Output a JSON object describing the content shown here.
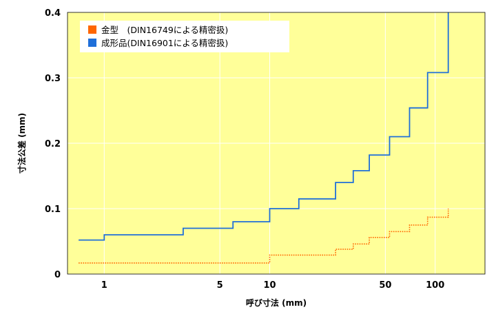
{
  "chart_data": {
    "type": "line",
    "xlabel": "呼び寸法 (mm)",
    "ylabel": "寸法公差 (mm)",
    "xscale": "log",
    "xlim": [
      0.6,
      200
    ],
    "ylim": [
      0,
      0.4
    ],
    "x_ticks": [
      1,
      5,
      10,
      50,
      100
    ],
    "y_ticks": [
      0,
      0.1,
      0.2,
      0.3,
      0.4
    ],
    "grid": true,
    "legend_position": "top-left",
    "plot_background": "#ffff99",
    "series": [
      {
        "name": "金型　(DIN16749による精密扱)",
        "color": "#ff6600",
        "style": "dotted-step",
        "points": [
          [
            0.7,
            0.017
          ],
          [
            10,
            0.017
          ],
          [
            10,
            0.029
          ],
          [
            25,
            0.029
          ],
          [
            25,
            0.038
          ],
          [
            32,
            0.038
          ],
          [
            32,
            0.046
          ],
          [
            40,
            0.046
          ],
          [
            40,
            0.056
          ],
          [
            53,
            0.056
          ],
          [
            53,
            0.065
          ],
          [
            70,
            0.065
          ],
          [
            70,
            0.075
          ],
          [
            90,
            0.075
          ],
          [
            90,
            0.087
          ],
          [
            120,
            0.087
          ],
          [
            120,
            0.1
          ]
        ]
      },
      {
        "name": "成形品(DIN16901による精密扱)",
        "color": "#1f6fd9",
        "style": "solid-step",
        "points": [
          [
            0.7,
            0.052
          ],
          [
            1,
            0.052
          ],
          [
            1,
            0.06
          ],
          [
            3,
            0.06
          ],
          [
            3,
            0.07
          ],
          [
            6,
            0.07
          ],
          [
            6,
            0.08
          ],
          [
            10,
            0.08
          ],
          [
            10,
            0.1
          ],
          [
            15,
            0.1
          ],
          [
            15,
            0.115
          ],
          [
            25,
            0.115
          ],
          [
            25,
            0.14
          ],
          [
            32,
            0.14
          ],
          [
            32,
            0.158
          ],
          [
            40,
            0.158
          ],
          [
            40,
            0.182
          ],
          [
            53,
            0.182
          ],
          [
            53,
            0.21
          ],
          [
            70,
            0.21
          ],
          [
            70,
            0.254
          ],
          [
            90,
            0.254
          ],
          [
            90,
            0.308
          ],
          [
            120,
            0.308
          ],
          [
            120,
            0.4
          ]
        ]
      }
    ]
  }
}
